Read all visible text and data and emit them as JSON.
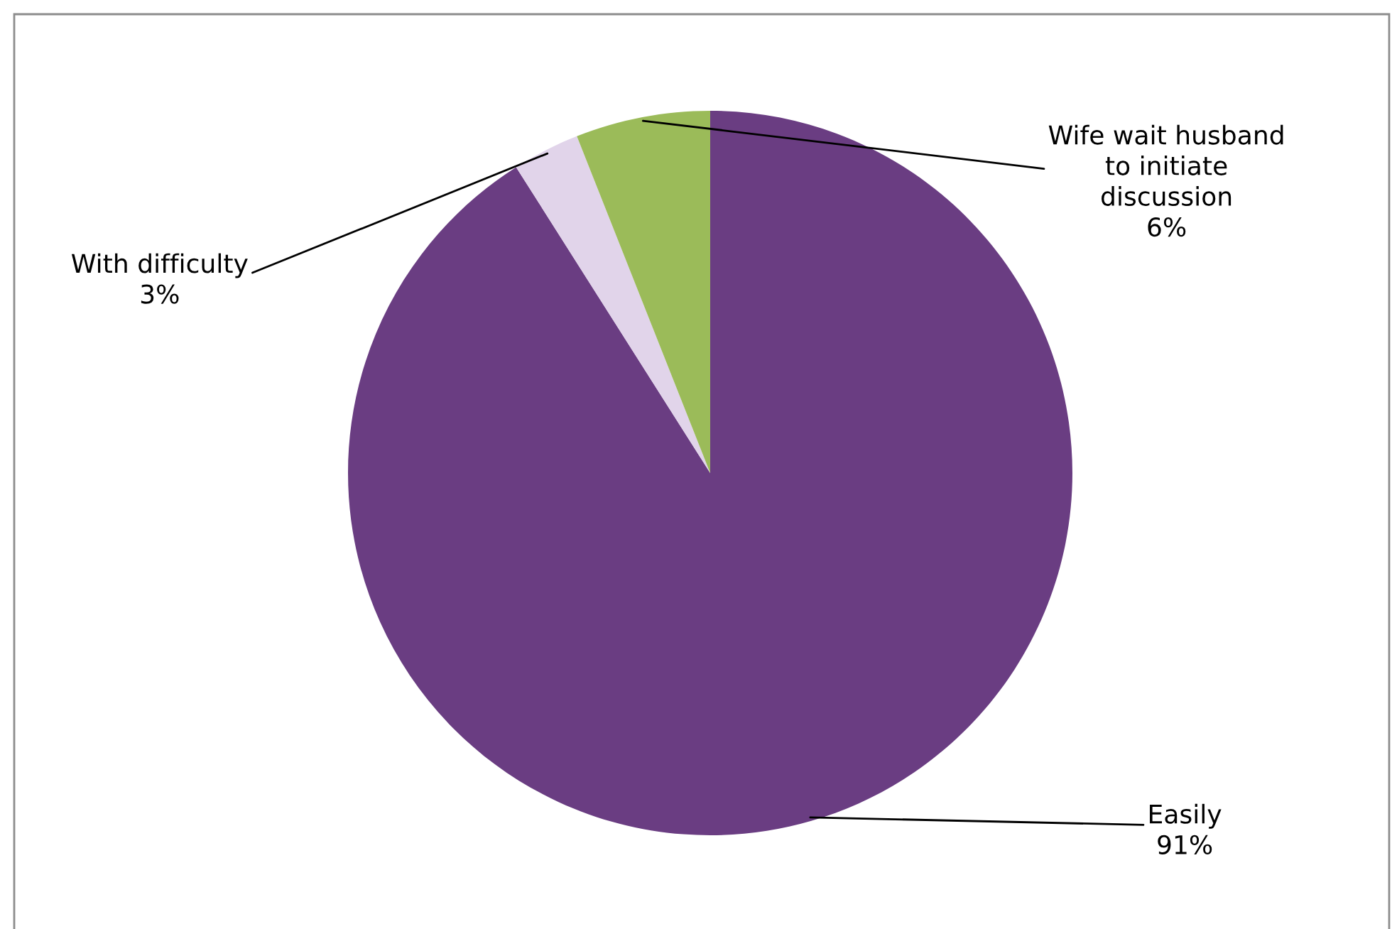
{
  "chart_data": {
    "type": "pie",
    "categories": [
      "Easily",
      "With difficulty",
      "Wife wait husband to initiate discussion"
    ],
    "values": [
      91,
      3,
      6
    ],
    "value_labels": [
      "91%",
      "3%",
      "6%"
    ],
    "colors": [
      "#6a3d82",
      "#e1d4ea",
      "#9bbb59"
    ],
    "legend": false
  }
}
